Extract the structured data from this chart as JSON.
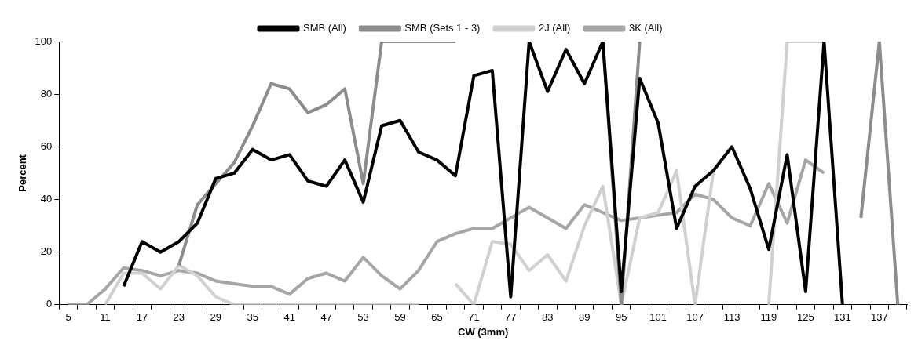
{
  "chart_data": {
    "type": "line",
    "xlabel": "CW (3mm)",
    "ylabel": "Percent",
    "categories": [
      "5",
      null,
      "11",
      null,
      "17",
      null,
      "23",
      null,
      "29",
      null,
      "35",
      null,
      "41",
      null,
      "47",
      null,
      "53",
      null,
      "59",
      null,
      "65",
      null,
      "71",
      null,
      "77",
      null,
      "83",
      null,
      "89",
      null,
      "95",
      null,
      "101",
      null,
      "107",
      null,
      "113",
      null,
      "119",
      null,
      "125",
      null,
      "131",
      null,
      "137",
      null
    ],
    "ylim": [
      0,
      100
    ],
    "yticks": [
      0,
      20,
      40,
      60,
      80,
      100
    ],
    "grid": false,
    "legend": "top",
    "marker": "none",
    "line_style": "solid",
    "series": [
      {
        "name": "SMB (All)",
        "color": "#000000",
        "values": [
          null,
          null,
          null,
          7,
          24,
          20,
          24,
          31,
          48,
          50,
          59,
          55,
          57,
          47,
          45,
          55,
          39,
          68,
          70,
          58,
          55,
          49,
          87,
          89,
          3,
          100,
          81,
          97,
          84,
          100,
          5,
          86,
          69,
          29,
          45,
          51,
          60,
          44,
          21,
          57,
          5,
          100,
          0,
          null,
          null,
          null
        ]
      },
      {
        "name": "SMB (Sets 1 - 3)",
        "color": "#8c8c8c",
        "values": [
          null,
          null,
          null,
          null,
          null,
          null,
          15,
          38,
          46,
          54,
          68,
          84,
          82,
          73,
          76,
          82,
          46,
          100,
          100,
          100,
          100,
          100,
          null,
          null,
          null,
          null,
          null,
          null,
          null,
          100,
          0,
          100,
          null,
          null,
          null,
          null,
          null,
          null,
          null,
          null,
          null,
          null,
          null,
          33,
          100,
          0
        ]
      },
      {
        "name": "2J (All)",
        "color": "#d0d0d0",
        "values": [
          null,
          null,
          0,
          12,
          12,
          6,
          15,
          11,
          3,
          0,
          0,
          0,
          0,
          0,
          0,
          0,
          0,
          0,
          0,
          0,
          null,
          8,
          0,
          24,
          23,
          13,
          19,
          9,
          30,
          45,
          0,
          33,
          35,
          51,
          0,
          51,
          null,
          null,
          0,
          100,
          100,
          100,
          null,
          null,
          null,
          null
        ]
      },
      {
        "name": "3K (All)",
        "color": "#a6a6a6",
        "values": [
          0,
          0,
          6,
          14,
          13,
          11,
          13,
          12,
          9,
          8,
          7,
          7,
          4,
          10,
          12,
          9,
          18,
          11,
          6,
          13,
          24,
          27,
          29,
          29,
          33,
          37,
          33,
          29,
          38,
          35,
          32,
          33,
          34,
          35,
          42,
          40,
          33,
          30,
          46,
          31,
          55,
          50,
          null,
          null,
          null,
          null
        ]
      }
    ]
  }
}
